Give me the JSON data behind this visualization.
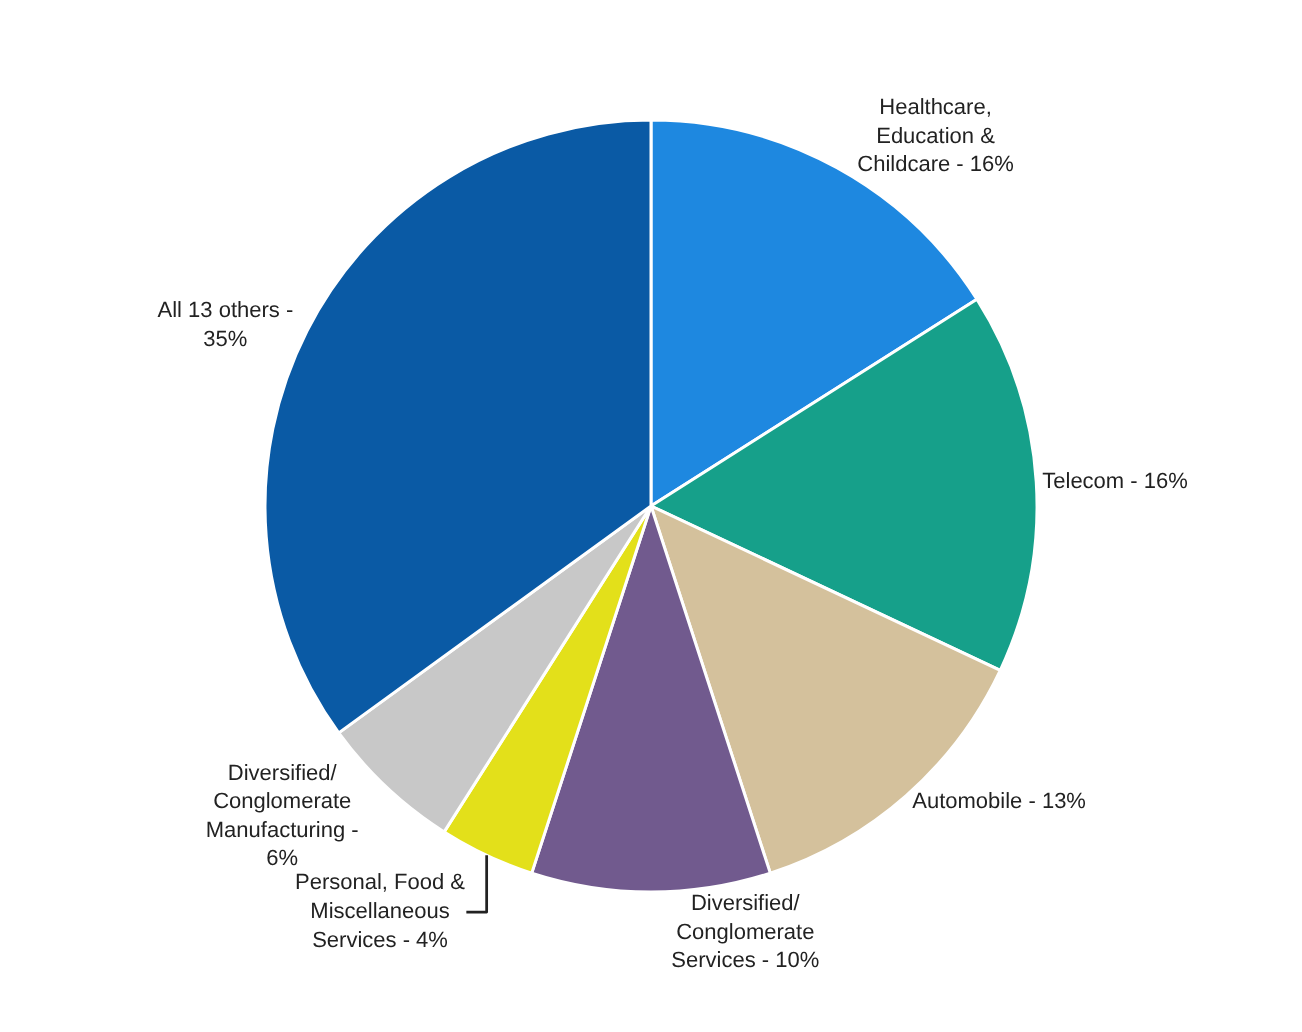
{
  "chart_data": {
    "type": "pie",
    "categories": [
      "Healthcare, Education & Childcare - 16%",
      "Telecom - 16%",
      "Automobile - 13%",
      "Diversified/ Conglomerate Services - 10%",
      "Personal, Food & Miscellaneous Services - 4%",
      "Diversified/ Conglomerate Manufacturing - 6%",
      "All 13 others - 35%"
    ],
    "values": [
      16,
      16,
      13,
      10,
      4,
      6,
      35
    ],
    "colors": [
      "#1e88e0",
      "#16a08a",
      "#d4c19c",
      "#715a8e",
      "#e3e01a",
      "#c8c8c8",
      "#0a5aa5"
    ],
    "legend": false
  }
}
